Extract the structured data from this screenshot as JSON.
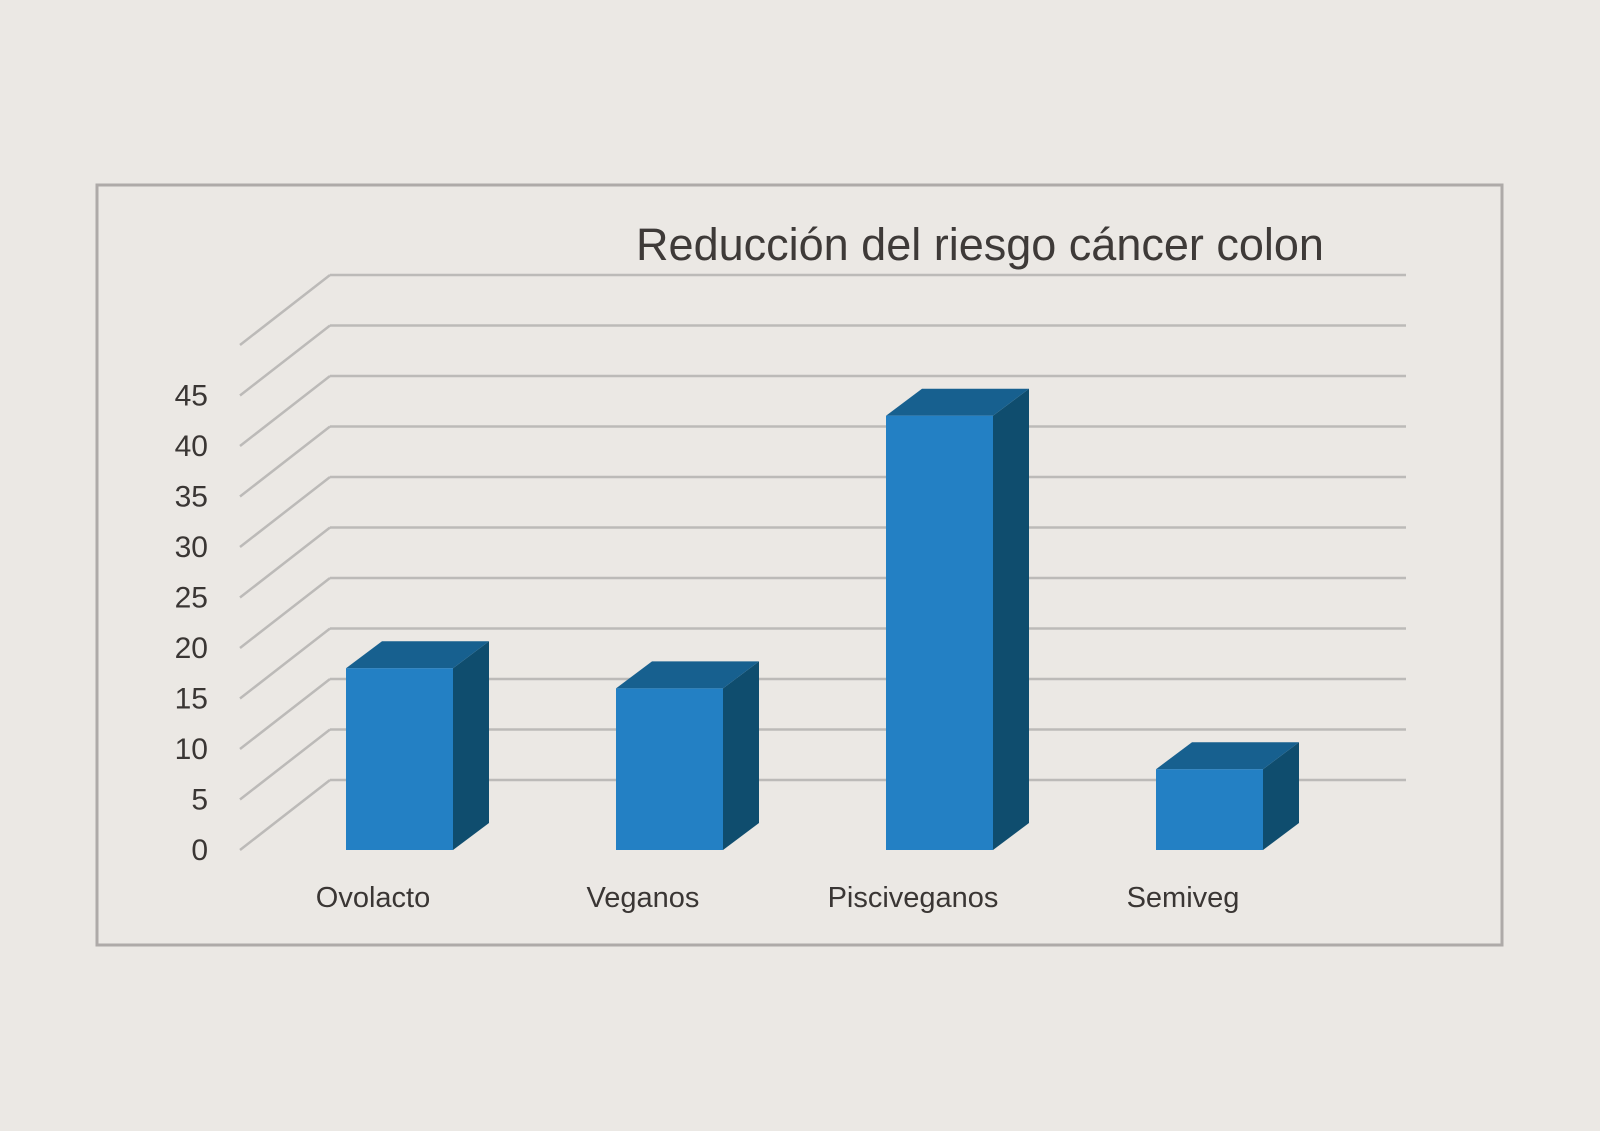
{
  "chart_data": {
    "type": "bar",
    "title": "Reducción del riesgo cáncer colon",
    "xlabel": "",
    "ylabel": "",
    "categories": [
      "Ovolacto",
      "Veganos",
      "Pisciveganos",
      "Semiveg"
    ],
    "values": [
      18,
      16,
      43,
      8
    ],
    "ylim": [
      0,
      50
    ],
    "yticks": [
      "0",
      "5",
      "10",
      "15",
      "20",
      "25",
      "30",
      "35",
      "40",
      "45"
    ],
    "grid": true,
    "legend": "none",
    "colors": {
      "bar_front": "#2380c4",
      "bar_top": "#17608f",
      "bar_side": "#0f4d6e",
      "gridline": "#bcbab8",
      "frame": "#aeaaa8",
      "background": "#ebe8e4"
    }
  }
}
